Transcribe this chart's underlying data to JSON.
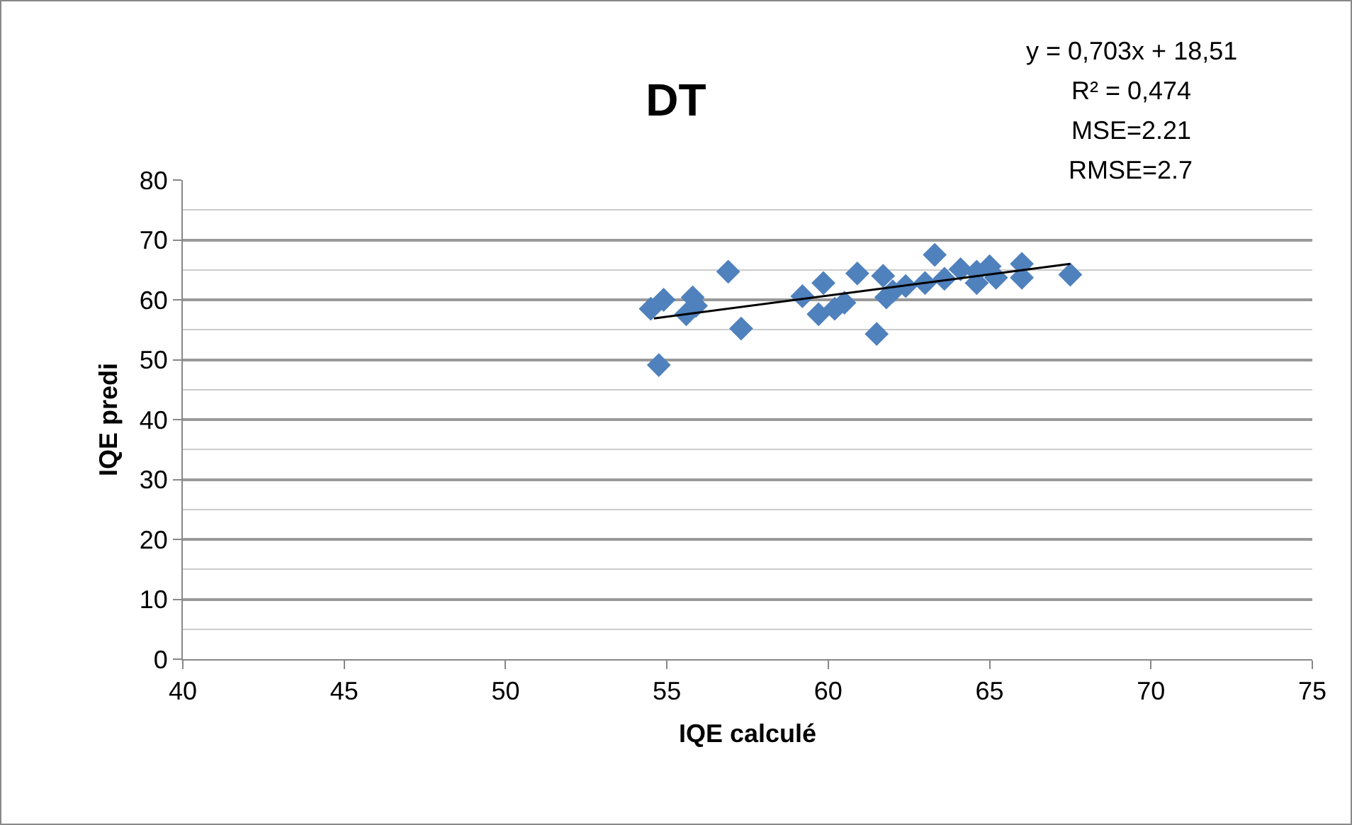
{
  "chart_data": {
    "type": "scatter",
    "title": "DT",
    "xlabel": "IQE calculé",
    "ylabel": "IQE predi",
    "annotations": [
      "y = 0,703x + 18,51",
      "R² = 0,474",
      "MSE=2.21",
      "RMSE=2.7"
    ],
    "series": [
      {
        "type": "scatter",
        "color": "#4f81bd",
        "marker": "diamond",
        "x": [
          54.5,
          54.9,
          54.75,
          55.6,
          55.8,
          55.9,
          56.9,
          57.3,
          59.2,
          59.7,
          59.85,
          60.2,
          60.5,
          60.9,
          61.5,
          61.7,
          61.8,
          62,
          62.4,
          63,
          63.3,
          63.6,
          64.1,
          64.6,
          64.6,
          65,
          65.2,
          66,
          66,
          67.5
        ],
        "values": [
          58.5,
          60,
          49.1,
          57.6,
          60.4,
          59,
          64.7,
          55.2,
          60.6,
          57.6,
          62.8,
          58.5,
          59.5,
          64.4,
          54.3,
          64,
          60.4,
          61.4,
          62.3,
          62.8,
          67.5,
          63.5,
          65.1,
          64.7,
          62.8,
          65.6,
          63.7,
          66,
          63.7,
          64.2
        ]
      },
      {
        "type": "line",
        "color": "#000000",
        "marker": "none",
        "line_style": "solid",
        "x": [
          54.6,
          67.5
        ],
        "values": [
          56.9,
          66
        ]
      }
    ],
    "xlim": [
      40,
      75
    ],
    "xticks": [
      40,
      45,
      50,
      55,
      60,
      65,
      70,
      75
    ],
    "ylim": [
      0,
      80
    ],
    "yticks": [
      0,
      10,
      20,
      30,
      40,
      50,
      60,
      70,
      80
    ],
    "grid": "y"
  }
}
